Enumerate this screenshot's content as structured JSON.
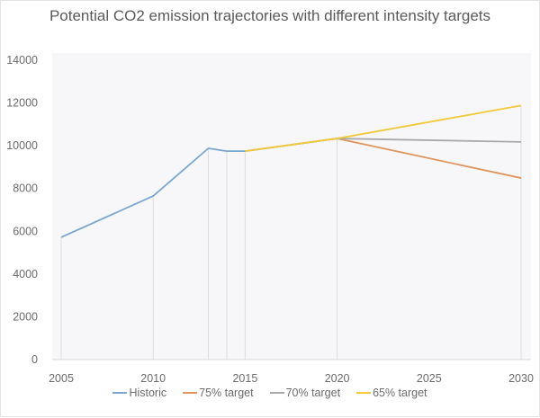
{
  "chart_data": {
    "type": "line",
    "title": "Potential CO2 emission trajectories with different intensity targets",
    "xlabel": "",
    "ylabel": "",
    "xlim": [
      2005,
      2030
    ],
    "ylim": [
      0,
      14000
    ],
    "x_ticks": [
      "2005",
      "2010",
      "2015",
      "2020",
      "2025",
      "2030"
    ],
    "y_ticks": [
      "0",
      "2000",
      "4000",
      "6000",
      "8000",
      "10000",
      "12000",
      "14000"
    ],
    "grid": false,
    "drop_lines": true,
    "legend_position": "bottom",
    "series": [
      {
        "name": "Historic",
        "color": "#7aa6cf",
        "x": [
          2005,
          2010,
          2013,
          2014,
          2015
        ],
        "values": [
          5720,
          7650,
          9880,
          9750,
          9750
        ]
      },
      {
        "name": "75% target",
        "color": "#e0955f",
        "x": [
          2015,
          2020,
          2030
        ],
        "values": [
          9750,
          10340,
          8490
        ]
      },
      {
        "name": "70% target",
        "color": "#a9a9a9",
        "x": [
          2015,
          2020,
          2030
        ],
        "values": [
          9750,
          10340,
          10180
        ]
      },
      {
        "name": "65% target",
        "color": "#f2c93a",
        "x": [
          2015,
          2020,
          2030
        ],
        "values": [
          9750,
          10340,
          11880
        ]
      }
    ],
    "drop_line_x": [
      2005,
      2010,
      2013,
      2014,
      2015,
      2020,
      2030
    ]
  }
}
